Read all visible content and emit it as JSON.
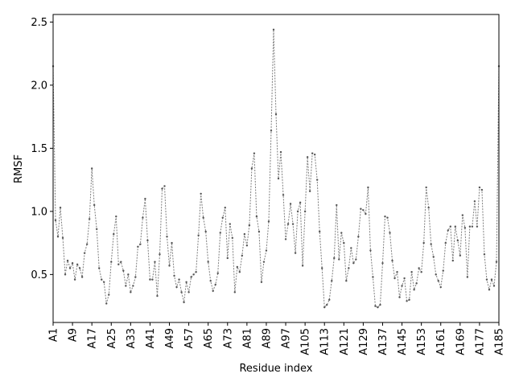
{
  "chart_data": {
    "type": "line",
    "title": "",
    "xlabel": "Residue index",
    "ylabel": "RMSF",
    "ylim": [
      0.12,
      2.56
    ],
    "yticks": [
      0.5,
      1.0,
      1.5,
      2.0,
      2.5
    ],
    "ytick_labels": [
      "0.5",
      "1.0",
      "1.5",
      "2.0",
      "2.5"
    ],
    "xticks": [
      1,
      9,
      17,
      25,
      33,
      41,
      49,
      57,
      65,
      73,
      81,
      89,
      97,
      105,
      113,
      121,
      129,
      137,
      145,
      153,
      161,
      169,
      177,
      185
    ],
    "xtick_labels": [
      "A1",
      "A9",
      "A17",
      "A25",
      "A33",
      "A41",
      "A49",
      "A57",
      "A65",
      "A73",
      "A81",
      "A89",
      "A97",
      "A105",
      "A113",
      "A121",
      "A129",
      "A137",
      "A145",
      "A153",
      "A161",
      "A169",
      "A177",
      "A185"
    ],
    "grid": false,
    "series_color": "#7f7f7f",
    "marker_color": "#555555",
    "series": [
      {
        "x": [
          1,
          2,
          3,
          4,
          5,
          6,
          7,
          8,
          9,
          10,
          11,
          12,
          13,
          14,
          15,
          16,
          17,
          18,
          19,
          20,
          21,
          22,
          23,
          24,
          25,
          26,
          27,
          28,
          29,
          30,
          31,
          32,
          33,
          34,
          35,
          36,
          37,
          38,
          39,
          40,
          41,
          42,
          43,
          44,
          45,
          46,
          47,
          48,
          49,
          50,
          51,
          52,
          53,
          54,
          55,
          56,
          57,
          58,
          59,
          60,
          61,
          62,
          63,
          64,
          65,
          66,
          67,
          68,
          69,
          70,
          71,
          72,
          73,
          74,
          75,
          76,
          77,
          78,
          79,
          80,
          81,
          82,
          83,
          84,
          85,
          86,
          87,
          88,
          89,
          90,
          91,
          92,
          93,
          94,
          95,
          96,
          97,
          98,
          99,
          100,
          101,
          102,
          103,
          104,
          105,
          106,
          107,
          108,
          109,
          110,
          111,
          112,
          113,
          114,
          115,
          116,
          117,
          118,
          119,
          120,
          121,
          122,
          123,
          124,
          125,
          126,
          127,
          128,
          129,
          130,
          131,
          132,
          133,
          134,
          135,
          136,
          137,
          138,
          139,
          140,
          141,
          142,
          143,
          144,
          145,
          146,
          147,
          148,
          149,
          150,
          151,
          152,
          153,
          154,
          155,
          156,
          157,
          158,
          159,
          160,
          161,
          162,
          163,
          164,
          165,
          166,
          167,
          168,
          169,
          170,
          171,
          172,
          173,
          174,
          175,
          176,
          177,
          178,
          179,
          180,
          181,
          182,
          183,
          184,
          185
        ],
        "values": [
          2.15,
          0.93,
          0.8,
          1.03,
          0.79,
          0.5,
          0.61,
          0.55,
          0.59,
          0.46,
          0.58,
          0.55,
          0.48,
          0.67,
          0.74,
          0.94,
          1.34,
          1.05,
          0.86,
          0.55,
          0.46,
          0.44,
          0.27,
          0.34,
          0.6,
          0.82,
          0.96,
          0.58,
          0.6,
          0.53,
          0.41,
          0.5,
          0.36,
          0.41,
          0.48,
          0.72,
          0.74,
          0.95,
          1.1,
          0.77,
          0.46,
          0.46,
          0.6,
          0.33,
          0.66,
          1.18,
          1.2,
          0.8,
          0.57,
          0.75,
          0.49,
          0.4,
          0.46,
          0.36,
          0.28,
          0.44,
          0.36,
          0.48,
          0.5,
          0.52,
          0.81,
          1.14,
          0.95,
          0.84,
          0.6,
          0.45,
          0.37,
          0.42,
          0.51,
          0.83,
          0.95,
          1.03,
          0.63,
          0.9,
          0.79,
          0.36,
          0.56,
          0.52,
          0.65,
          0.82,
          0.73,
          0.89,
          1.34,
          1.46,
          0.96,
          0.84,
          0.44,
          0.6,
          0.69,
          0.92,
          1.64,
          2.44,
          1.77,
          1.26,
          1.47,
          1.13,
          0.78,
          0.9,
          1.06,
          0.9,
          0.67,
          1.0,
          1.07,
          0.57,
          1.0,
          1.43,
          1.16,
          1.46,
          1.45,
          1.25,
          0.84,
          0.55,
          0.24,
          0.26,
          0.3,
          0.45,
          0.63,
          1.05,
          0.62,
          0.83,
          0.75,
          0.45,
          0.55,
          0.71,
          0.59,
          0.62,
          0.8,
          1.02,
          1.01,
          0.98,
          1.19,
          0.69,
          0.48,
          0.25,
          0.24,
          0.26,
          0.59,
          0.96,
          0.95,
          0.83,
          0.61,
          0.47,
          0.52,
          0.32,
          0.41,
          0.47,
          0.29,
          0.3,
          0.52,
          0.38,
          0.43,
          0.55,
          0.52,
          0.75,
          1.19,
          1.03,
          0.74,
          0.64,
          0.5,
          0.45,
          0.4,
          0.53,
          0.75,
          0.85,
          0.88,
          0.61,
          0.88,
          0.77,
          0.65,
          0.97,
          0.87,
          0.48,
          0.88,
          0.88,
          1.08,
          0.88,
          1.19,
          1.17,
          0.66,
          0.46,
          0.38,
          0.46,
          0.41,
          0.6,
          2.15
        ]
      }
    ]
  }
}
